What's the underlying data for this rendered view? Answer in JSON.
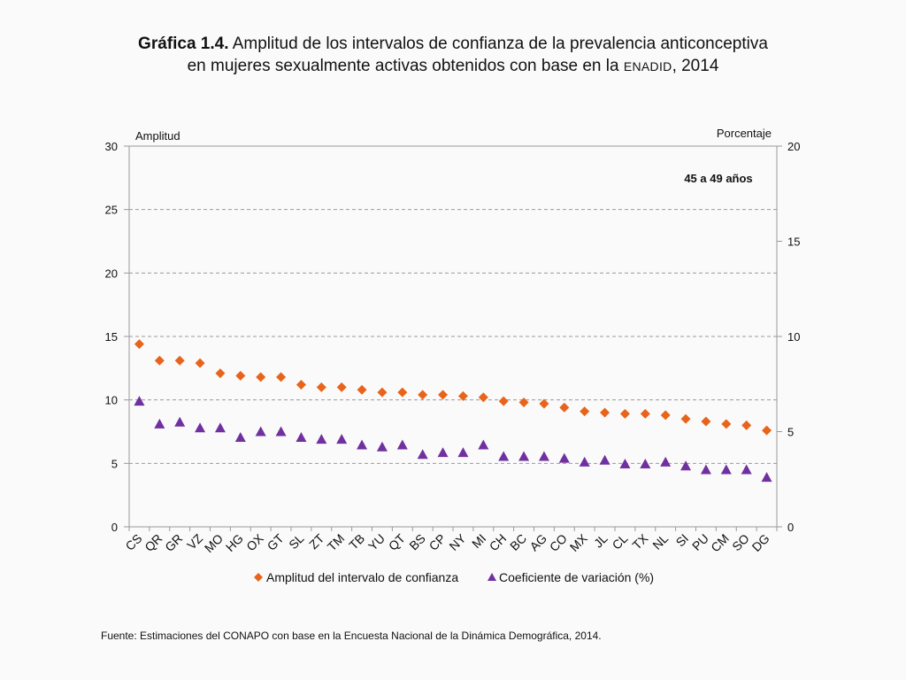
{
  "title": {
    "bold": "Gráfica 1.4.",
    "line1_rest": " Amplitud de los intervalos de confianza de la prevalencia anticonceptiva",
    "line2_pre": "en mujeres sexualmente activas obtenidos con base en la ",
    "line2_smallcaps": "ENADID",
    "line2_post": ", 2014"
  },
  "source": "Fuente: Estimaciones del CONAPO con base en la Encuesta Nacional de la Dinámica Demográfica, 2014.",
  "chart_data": {
    "type": "scatter",
    "title": "Amplitud de los intervalos de confianza de la prevalencia anticonceptiva en mujeres sexualmente activas",
    "annotation": "45 a 49 años",
    "ylabel_left": "Amplitud",
    "ylabel_right": "Porcentaje",
    "ylim_left": [
      0,
      30
    ],
    "yticks_left": [
      0,
      5,
      10,
      15,
      20,
      25,
      30
    ],
    "ylim_right": [
      0,
      20
    ],
    "yticks_right": [
      0,
      5,
      10,
      15,
      20
    ],
    "grid": true,
    "legend_position": "bottom",
    "categories": [
      "CS",
      "QR",
      "GR",
      "VZ",
      "MO",
      "HG",
      "OX",
      "GT",
      "SL",
      "ZT",
      "TM",
      "TB",
      "YU",
      "QT",
      "BS",
      "CP",
      "NY",
      "MI",
      "CH",
      "BC",
      "AG",
      "CO",
      "MX",
      "JL",
      "CL",
      "TX",
      "NL",
      "SI",
      "PU",
      "CM",
      "SO",
      "DG"
    ],
    "series": [
      {
        "name": "Amplitud del intervalo de confianza",
        "axis": "left",
        "marker": "diamond",
        "color": "#e8641b",
        "values": [
          14.4,
          13.1,
          13.1,
          12.9,
          12.1,
          11.9,
          11.8,
          11.8,
          11.2,
          11.0,
          11.0,
          10.8,
          10.6,
          10.6,
          10.4,
          10.4,
          10.3,
          10.2,
          9.9,
          9.8,
          9.7,
          9.4,
          9.1,
          9.0,
          8.9,
          8.9,
          8.8,
          8.5,
          8.3,
          8.1,
          8.0,
          7.6
        ]
      },
      {
        "name": "Coeficiente de variación (%)",
        "axis": "right",
        "marker": "triangle",
        "color": "#7030a0",
        "values": [
          6.6,
          5.4,
          5.5,
          5.2,
          5.2,
          4.7,
          5.0,
          5.0,
          4.7,
          4.6,
          4.6,
          4.3,
          4.2,
          4.3,
          3.8,
          3.9,
          3.9,
          4.3,
          3.7,
          3.7,
          3.7,
          3.6,
          3.4,
          3.5,
          3.3,
          3.3,
          3.4,
          3.2,
          3.0,
          3.0,
          3.0,
          2.6
        ]
      }
    ]
  }
}
